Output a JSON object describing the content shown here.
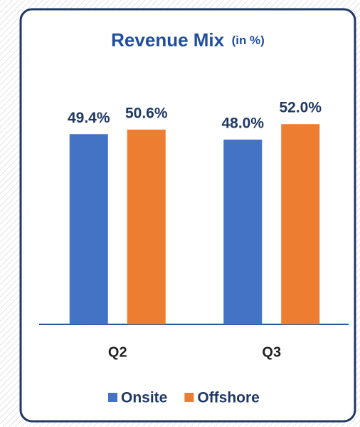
{
  "chart_data": {
    "type": "bar",
    "title": "Revenue Mix",
    "title_unit": "(in %)",
    "categories": [
      "Q2",
      "Q3"
    ],
    "series": [
      {
        "name": "Onsite",
        "color": "#4472c4",
        "values": [
          49.4,
          48.0
        ],
        "value_labels": [
          "49.4%",
          "48.0%"
        ]
      },
      {
        "name": "Offshore",
        "color": "#ed7d31",
        "values": [
          50.6,
          52.0
        ],
        "value_labels": [
          "50.6%",
          "52.0%"
        ]
      }
    ]
  }
}
